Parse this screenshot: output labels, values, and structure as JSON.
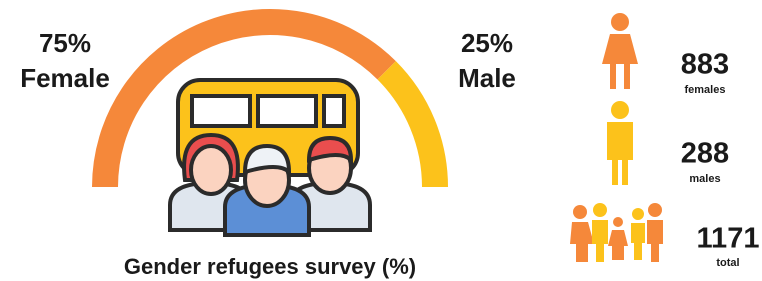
{
  "chart_data": {
    "type": "pie",
    "title": "Gender refugees survey (%)",
    "categories": [
      "Female",
      "Male"
    ],
    "values": [
      75,
      25
    ],
    "value_labels": [
      "75%",
      "25%"
    ],
    "colors": [
      "#f5883a",
      "#fcc21b"
    ]
  },
  "stats": [
    {
      "value": 883,
      "label": "females"
    },
    {
      "value": 288,
      "label": "males"
    },
    {
      "value": 1171,
      "label": "total"
    }
  ]
}
